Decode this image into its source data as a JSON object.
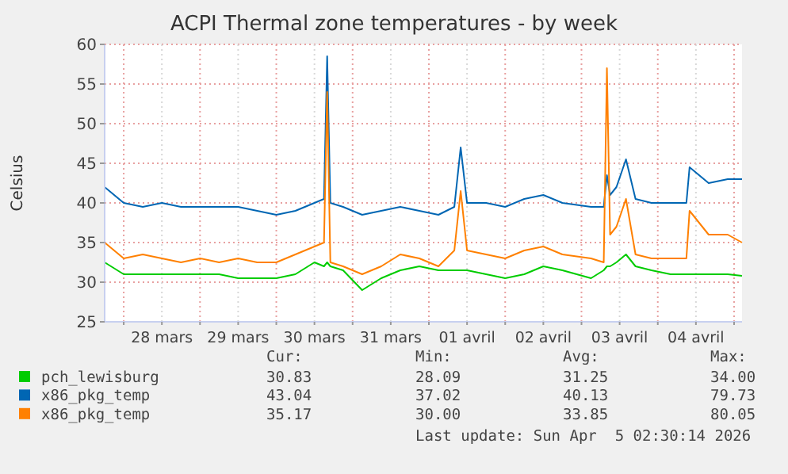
{
  "chart_data": {
    "type": "line",
    "title": "ACPI Thermal zone temperatures - by week",
    "ylabel": "Celsius",
    "x": [
      "2026-03-27T18:00",
      "2026-03-28T00:00",
      "2026-03-28T06:00",
      "2026-03-28T12:00",
      "2026-03-28T18:00",
      "2026-03-29T00:00",
      "2026-03-29T06:00",
      "2026-03-29T12:00",
      "2026-03-29T18:00",
      "2026-03-30T00:00",
      "2026-03-30T06:00",
      "2026-03-30T12:00",
      "2026-03-30T15:00",
      "2026-03-30T16:00",
      "2026-03-30T17:00",
      "2026-03-30T21:00",
      "2026-03-31T03:00",
      "2026-03-31T09:00",
      "2026-03-31T15:00",
      "2026-03-31T21:00",
      "2026-04-01T03:00",
      "2026-04-01T08:00",
      "2026-04-01T10:00",
      "2026-04-01T12:00",
      "2026-04-01T18:00",
      "2026-04-02T00:00",
      "2026-04-02T06:00",
      "2026-04-02T12:00",
      "2026-04-02T18:00",
      "2026-04-03T03:00",
      "2026-04-03T07:00",
      "2026-04-03T08:00",
      "2026-04-03T09:00",
      "2026-04-03T11:00",
      "2026-04-03T14:00",
      "2026-04-03T17:00",
      "2026-04-03T22:00",
      "2026-04-04T04:00",
      "2026-04-04T09:00",
      "2026-04-04T10:00",
      "2026-04-04T16:00",
      "2026-04-04T22:00",
      "2026-04-05T02:30"
    ],
    "series": [
      {
        "name": "pch_lewisburg",
        "color": "#00cc00",
        "values": [
          32.5,
          31,
          31,
          31,
          31,
          31,
          31,
          30.5,
          30.5,
          30.5,
          31,
          32.5,
          32,
          32.5,
          32,
          31.5,
          29,
          30.5,
          31.5,
          32,
          31.5,
          31.5,
          31.5,
          31.5,
          31,
          30.5,
          31,
          32,
          31.5,
          30.5,
          31.5,
          32,
          32,
          32.5,
          33.5,
          32,
          31.5,
          31,
          31,
          31,
          31,
          31,
          30.8
        ]
      },
      {
        "name": "x86_pkg_temp",
        "color": "#0066b3",
        "values": [
          42,
          40,
          39.5,
          40,
          39.5,
          39.5,
          39.5,
          39.5,
          39,
          38.5,
          39,
          40,
          40.5,
          58.5,
          40,
          39.5,
          38.5,
          39,
          39.5,
          39,
          38.5,
          39.5,
          47,
          40,
          40,
          39.5,
          40.5,
          41,
          40,
          39.5,
          39.5,
          43.5,
          41,
          42,
          45.5,
          40.5,
          40,
          40,
          40,
          44.5,
          42.5,
          43,
          43
        ]
      },
      {
        "name": "x86_pkg_temp",
        "color": "#ff8000",
        "values": [
          35,
          33,
          33.5,
          33,
          32.5,
          33,
          32.5,
          33,
          32.5,
          32.5,
          33.5,
          34.5,
          35,
          54,
          32.5,
          32,
          31,
          32,
          33.5,
          33,
          32,
          34,
          41.5,
          34,
          33.5,
          33,
          34,
          34.5,
          33.5,
          33,
          32.5,
          57,
          36,
          37,
          40.5,
          33.5,
          33,
          33,
          33,
          39,
          36,
          36,
          35
        ]
      }
    ],
    "xlim": [
      "2026-03-27T18:00",
      "2026-04-05T02:30"
    ],
    "xticks": [
      {
        "value": "2026-03-28T00:00",
        "label": null
      },
      {
        "value": "2026-03-28T12:00",
        "label": "28 mars"
      },
      {
        "value": "2026-03-29T00:00",
        "label": null
      },
      {
        "value": "2026-03-29T12:00",
        "label": "29 mars"
      },
      {
        "value": "2026-03-30T00:00",
        "label": null
      },
      {
        "value": "2026-03-30T12:00",
        "label": "30 mars"
      },
      {
        "value": "2026-03-31T00:00",
        "label": null
      },
      {
        "value": "2026-03-31T12:00",
        "label": "31 mars"
      },
      {
        "value": "2026-04-01T00:00",
        "label": null
      },
      {
        "value": "2026-04-01T12:00",
        "label": "01 avril"
      },
      {
        "value": "2026-04-02T00:00",
        "label": null
      },
      {
        "value": "2026-04-02T12:00",
        "label": "02 avril"
      },
      {
        "value": "2026-04-03T00:00",
        "label": null
      },
      {
        "value": "2026-04-03T12:00",
        "label": "03 avril"
      },
      {
        "value": "2026-04-04T00:00",
        "label": null
      },
      {
        "value": "2026-04-04T12:00",
        "label": "04 avril"
      },
      {
        "value": "2026-04-05T00:00",
        "label": null
      }
    ],
    "ylim": [
      25,
      60
    ],
    "yticks": [
      25,
      30,
      35,
      40,
      45,
      50,
      55,
      60
    ],
    "grid": true,
    "legend": "bottom",
    "marker": "none",
    "line_style": "solid",
    "annotations": [
      "Cur:",
      "Min:",
      "Avg:",
      "Max:",
      "30.83",
      "28.09",
      "31.25",
      "34.00",
      "43.04",
      "37.02",
      "40.13",
      "79.73",
      "35.17",
      "30.00",
      "33.85",
      "80.05",
      "Last update: Sun Apr  5 02:30:14 2026"
    ]
  }
}
